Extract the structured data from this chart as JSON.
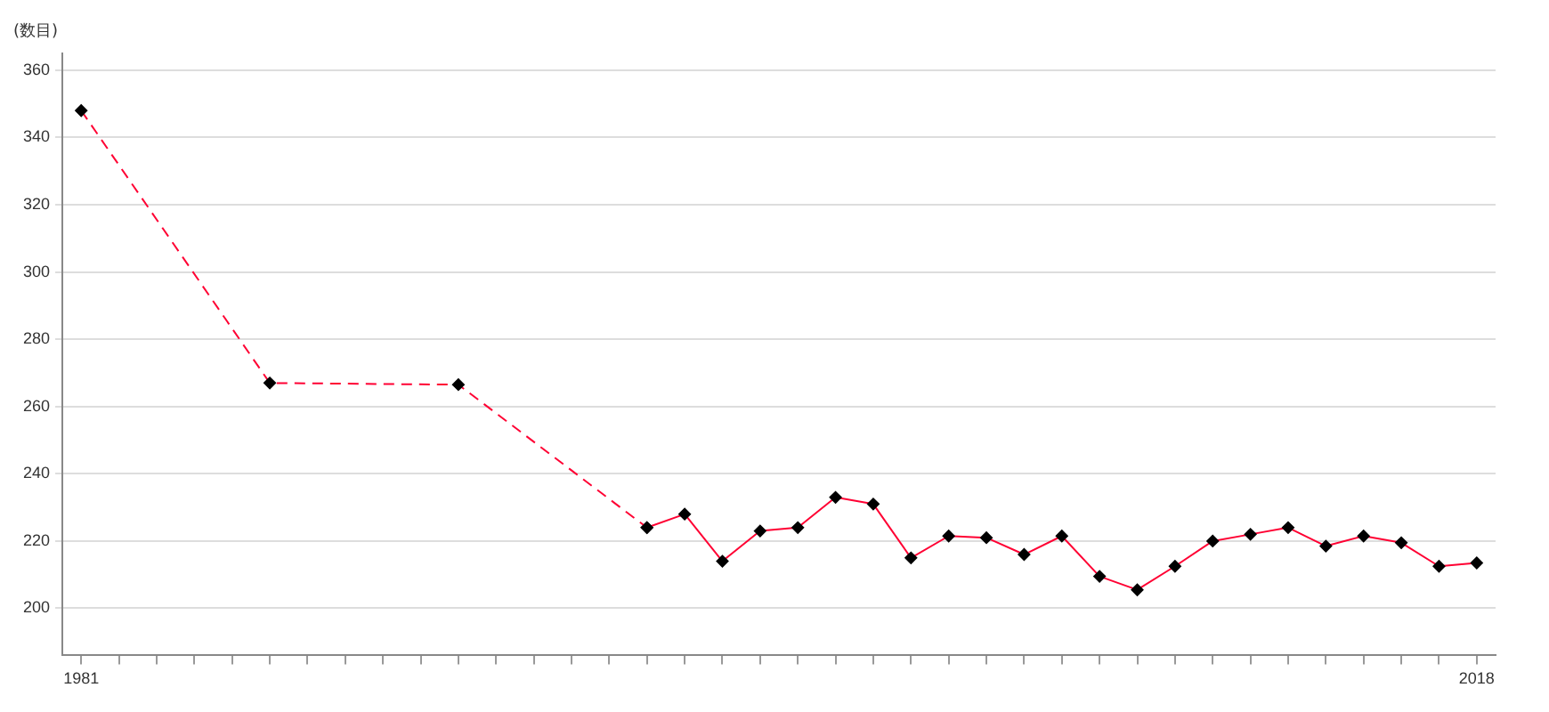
{
  "chart_data": {
    "type": "line",
    "ylabel": "(数目)",
    "series": [
      {
        "color": "#ff0033",
        "line_style": "dashed",
        "x": [
          1981,
          1986,
          1991,
          1996
        ],
        "values": [
          348,
          267,
          266.5,
          224
        ]
      },
      {
        "color": "#ff0033",
        "line_style": "solid",
        "x": [
          1996,
          1997,
          1998,
          1999,
          2000,
          2001,
          2002,
          2003,
          2004,
          2005,
          2006,
          2007,
          2008,
          2009,
          2010,
          2011,
          2012,
          2013,
          2014,
          2015,
          2016,
          2017,
          2018
        ],
        "values": [
          224,
          228,
          214,
          223,
          224,
          233,
          231,
          215,
          221.5,
          221,
          216,
          221.5,
          209.5,
          205.5,
          212.5,
          220,
          222,
          224,
          218.5,
          221.5,
          219.5,
          212.5,
          213.5
        ]
      }
    ],
    "xlim": [
      1980.5,
      2018.5
    ],
    "xticks": [
      1981,
      {
        "value": 1982,
        "label": null
      },
      {
        "value": 1983,
        "label": null
      },
      {
        "value": 1984,
        "label": null
      },
      {
        "value": 1985,
        "label": null
      },
      {
        "value": 1986,
        "label": null
      },
      {
        "value": 1987,
        "label": null
      },
      {
        "value": 1988,
        "label": null
      },
      {
        "value": 1989,
        "label": null
      },
      {
        "value": 1990,
        "label": null
      },
      {
        "value": 1991,
        "label": null
      },
      {
        "value": 1992,
        "label": null
      },
      {
        "value": 1993,
        "label": null
      },
      {
        "value": 1994,
        "label": null
      },
      {
        "value": 1995,
        "label": null
      },
      {
        "value": 1996,
        "label": null
      },
      {
        "value": 1997,
        "label": null
      },
      {
        "value": 1998,
        "label": null
      },
      {
        "value": 1999,
        "label": null
      },
      {
        "value": 2000,
        "label": null
      },
      {
        "value": 2001,
        "label": null
      },
      {
        "value": 2002,
        "label": null
      },
      {
        "value": 2003,
        "label": null
      },
      {
        "value": 2004,
        "label": null
      },
      {
        "value": 2005,
        "label": null
      },
      {
        "value": 2006,
        "label": null
      },
      {
        "value": 2007,
        "label": null
      },
      {
        "value": 2008,
        "label": null
      },
      {
        "value": 2009,
        "label": null
      },
      {
        "value": 2010,
        "label": null
      },
      {
        "value": 2011,
        "label": null
      },
      {
        "value": 2012,
        "label": null
      },
      {
        "value": 2013,
        "label": null
      },
      {
        "value": 2014,
        "label": null
      },
      {
        "value": 2015,
        "label": null
      },
      {
        "value": 2016,
        "label": null
      },
      {
        "value": 2017,
        "label": null
      },
      2018
    ],
    "ylim": [
      186,
      365
    ],
    "yticks": [
      200,
      220,
      240,
      260,
      280,
      300,
      320,
      340,
      360
    ],
    "grid": "y",
    "legend": false,
    "marker": "diamond"
  }
}
